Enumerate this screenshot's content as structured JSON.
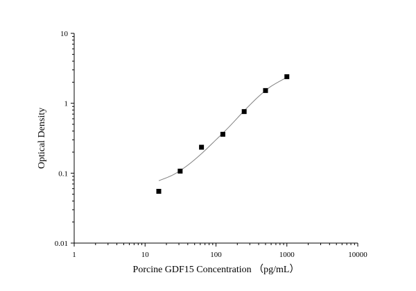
{
  "chart_data": {
    "type": "scatter",
    "title": "",
    "xlabel": "Porcine GDF15 Concentration （pg/mL）",
    "ylabel": "Optical Density",
    "x_scale": "log",
    "y_scale": "log",
    "xlim": [
      1,
      10000
    ],
    "ylim": [
      0.01,
      10
    ],
    "x_ticks": [
      1,
      10,
      100,
      1000,
      10000
    ],
    "x_tick_labels": [
      "1",
      "10",
      "100",
      "1000",
      "10000"
    ],
    "y_ticks": [
      0.01,
      0.1,
      1,
      10
    ],
    "y_tick_labels": [
      "0.01",
      "0.1",
      "1",
      "10"
    ],
    "grid": false,
    "legend": "none",
    "colors": {
      "marker": "#000000",
      "curve": "#808080"
    },
    "series": [
      {
        "type": "scatter",
        "marker": "square",
        "points": [
          {
            "x": 15.6,
            "y": 0.055
          },
          {
            "x": 31.25,
            "y": 0.107
          },
          {
            "x": 62.5,
            "y": 0.235
          },
          {
            "x": 125,
            "y": 0.36
          },
          {
            "x": 250,
            "y": 0.76
          },
          {
            "x": 500,
            "y": 1.52
          },
          {
            "x": 1000,
            "y": 2.4
          }
        ]
      },
      {
        "type": "line",
        "smooth": true,
        "points": [
          {
            "x": 15.6,
            "y": 0.078
          },
          {
            "x": 25,
            "y": 0.095
          },
          {
            "x": 40,
            "y": 0.13
          },
          {
            "x": 62.5,
            "y": 0.19
          },
          {
            "x": 100,
            "y": 0.3
          },
          {
            "x": 150,
            "y": 0.45
          },
          {
            "x": 250,
            "y": 0.78
          },
          {
            "x": 400,
            "y": 1.25
          },
          {
            "x": 600,
            "y": 1.75
          },
          {
            "x": 1000,
            "y": 2.35
          }
        ]
      }
    ]
  }
}
